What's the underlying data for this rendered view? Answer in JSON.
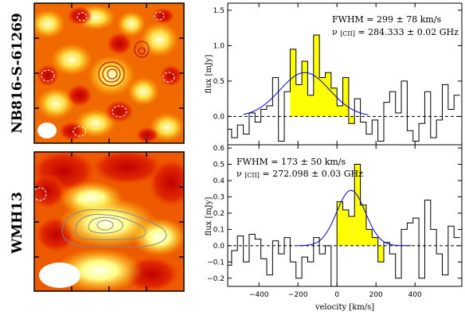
{
  "colors": {
    "bar_fill": "#ffff00",
    "gauss_line": "#0000cc",
    "step_line": "#000000",
    "map_hot": "#ffff66",
    "map_cold": "#cc0000",
    "contour_pos_top": "#b00000",
    "contour_pos_bottom": "#888888",
    "contour_neg": "#ffffff",
    "beam": "#ffffff"
  },
  "maps": [
    {
      "id": "top",
      "source_label": "NB816-S-61269"
    },
    {
      "id": "bottom",
      "source_label": "WMH13"
    }
  ],
  "chart_data": [
    {
      "type": "step",
      "ylabel": "flux [mJy]",
      "annotation_fwhm": "FWHM = 299 ± 78 km/s",
      "annotation_freq_prefix": "ν",
      "annotation_freq_sub": "[CII]",
      "annotation_freq_value": "= 284.333 ± 0.02 GHz",
      "xlim": [
        -560,
        640
      ],
      "ylim": [
        -0.4,
        1.6
      ],
      "yticks": [
        -0.0,
        0.5,
        1.0,
        1.5
      ],
      "ytick_labels": [
        "0.0",
        "0.5",
        "1.0",
        "1.5"
      ],
      "channel_width": 30,
      "channel_centers": [
        -555,
        -525,
        -495,
        -465,
        -435,
        -405,
        -375,
        -345,
        -315,
        -285,
        -255,
        -225,
        -195,
        -165,
        -135,
        -105,
        -75,
        -45,
        -15,
        15,
        45,
        75,
        105,
        135,
        165,
        195,
        225,
        255,
        285,
        315,
        345,
        375,
        405,
        435,
        465,
        495,
        525,
        555,
        585,
        615
      ],
      "values": [
        -0.18,
        -0.3,
        -0.12,
        -0.25,
        0.05,
        -0.08,
        0.1,
        0.15,
        0.55,
        -0.35,
        0.35,
        0.95,
        0.45,
        0.78,
        0.3,
        1.15,
        0.55,
        0.62,
        0.4,
        0.15,
        0.55,
        -0.1,
        0.25,
        -0.08,
        -0.25,
        -0.05,
        -0.35,
        0.2,
        0.35,
        0.05,
        0.5,
        -0.2,
        -0.35,
        -0.1,
        0.35,
        -0.3,
        -0.05,
        0.45,
        0.1,
        0.3
      ],
      "highlight_range": [
        -240,
        90
      ],
      "gaussian": {
        "amplitude": 0.62,
        "center": -165,
        "fwhm": 299,
        "x_range": [
          -480,
          160
        ]
      },
      "zero_line": 0.0
    },
    {
      "type": "step",
      "ylabel": "flux [mJy]",
      "xlabel": "velocity [km/s]",
      "annotation_fwhm": "FWHM = 173 ± 50 km/s",
      "annotation_freq_prefix": "ν",
      "annotation_freq_sub": "[CII]",
      "annotation_freq_value": "= 272.098 ± 0.03 GHz",
      "xlim": [
        -560,
        640
      ],
      "ylim": [
        -0.25,
        0.62
      ],
      "yticks": [
        -0.2,
        -0.1,
        0.0,
        0.1,
        0.2,
        0.3,
        0.4,
        0.5,
        0.6
      ],
      "ytick_labels": [
        "−0.2",
        "−0.1",
        "0.0",
        "0.1",
        "0.2",
        "0.3",
        "0.4",
        "0.5",
        "0.6"
      ],
      "xticks": [
        -400,
        -200,
        0,
        200,
        400
      ],
      "xtick_labels": [
        "−400",
        "−200",
        "0",
        "200",
        "400"
      ],
      "channel_width": 30,
      "channel_centers": [
        -555,
        -525,
        -495,
        -465,
        -435,
        -405,
        -375,
        -345,
        -315,
        -285,
        -255,
        -225,
        -195,
        -165,
        -135,
        -105,
        -75,
        -45,
        -15,
        15,
        45,
        75,
        105,
        135,
        165,
        195,
        225,
        255,
        285,
        315,
        345,
        375,
        405,
        435,
        465,
        495,
        525,
        555,
        585,
        615
      ],
      "values": [
        -0.12,
        -0.03,
        0.06,
        -0.1,
        0.07,
        0.04,
        -0.08,
        -0.18,
        0.03,
        -0.05,
        0.05,
        -0.1,
        -0.2,
        -0.07,
        -0.1,
        0.05,
        -0.05,
        0.0,
        -0.25,
        0.27,
        0.22,
        0.18,
        0.5,
        0.25,
        0.1,
        0.05,
        -0.1,
        0.02,
        -0.05,
        -0.2,
        0.1,
        0.14,
        0.17,
        -0.2,
        0.28,
        0.1,
        -0.05,
        -0.18,
        0.12,
        0.05
      ],
      "highlight_range": [
        0,
        240
      ],
      "gaussian": {
        "amplitude": 0.34,
        "center": 72,
        "fwhm": 173,
        "x_range": [
          -200,
          380
        ]
      },
      "zero_line": 0.0
    }
  ]
}
